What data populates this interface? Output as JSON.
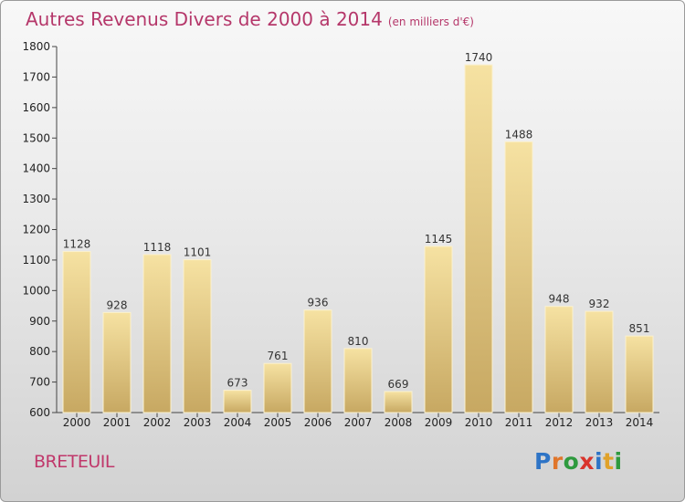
{
  "header": {
    "title": "Autres Revenus Divers de 2000 à 2014",
    "subtitle": "(en milliers d'€)"
  },
  "footer": {
    "town": "BRETEUIL",
    "logo": [
      "P",
      "r",
      "o",
      "x",
      "i",
      "t",
      "i"
    ]
  },
  "colors": {
    "title": "#b5376a",
    "bar_light": "#f5df9c",
    "bar_dark": "#c9aa63",
    "axis": "#333333"
  },
  "chart_data": {
    "type": "bar",
    "categories": [
      "2000",
      "2001",
      "2002",
      "2003",
      "2004",
      "2005",
      "2006",
      "2007",
      "2008",
      "2009",
      "2010",
      "2011",
      "2012",
      "2013",
      "2014"
    ],
    "values": [
      1128,
      928,
      1118,
      1101,
      673,
      761,
      936,
      810,
      669,
      1145,
      1740,
      1488,
      948,
      932,
      851
    ],
    "title": "Autres Revenus Divers de 2000 à 2014",
    "subtitle": "(en milliers d'€)",
    "xlabel": "",
    "ylabel": "",
    "ylim": [
      600,
      1800
    ],
    "yticks": [
      600,
      700,
      800,
      900,
      1000,
      1100,
      1200,
      1300,
      1400,
      1500,
      1600,
      1700,
      1800
    ],
    "grid": false,
    "data_labels": true
  }
}
